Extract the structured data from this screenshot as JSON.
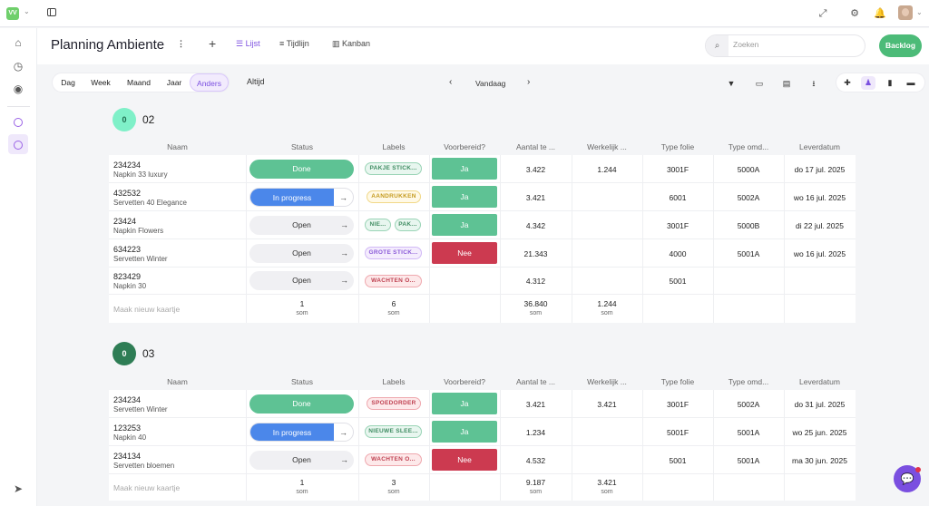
{
  "workspace": {
    "initials": "VV"
  },
  "header": {
    "title": "Planning Ambiente",
    "add": "+",
    "views": [
      "Lijst",
      "Tijdlijn",
      "Kanban"
    ],
    "search_placeholder": "Zoeken",
    "backlog": "Backlog"
  },
  "toolbar": {
    "ranges": [
      "Dag",
      "Week",
      "Maand",
      "Jaar",
      "Anders"
    ],
    "active_range": "Anders",
    "period": "Altijd",
    "today": "Vandaag"
  },
  "columns": [
    "Naam",
    "Status",
    "Labels",
    "Voorbereid?",
    "Aantal te ...",
    "Werkelijk ...",
    "Type folie",
    "Type omd...",
    "Leverdatum"
  ],
  "groups": [
    {
      "name": "02",
      "count": "0",
      "badge_color": "#7ff0c8",
      "badge_text": "#1f6b4e",
      "rows": [
        {
          "id": "234234",
          "name": "Napkin 33 luxury",
          "status": "Done",
          "labels": [
            "PAKJE STICK..."
          ],
          "label_colors": [
            "green"
          ],
          "ready": "Ja",
          "aantal": "3.422",
          "werkelijk": "1.244",
          "folie": "3001F",
          "omdoos": "5000A",
          "lever": "do 17 jul. 2025"
        },
        {
          "id": "432532",
          "name": "Servetten 40 Elegance",
          "status": "In progress",
          "labels": [
            "AANDRUKKEN"
          ],
          "label_colors": [
            "yellow"
          ],
          "ready": "Ja",
          "aantal": "3.421",
          "werkelijk": "",
          "folie": "6001",
          "omdoos": "5002A",
          "lever": "wo 16 jul. 2025"
        },
        {
          "id": "23424",
          "name": "Napkin Flowers",
          "status": "Open",
          "labels": [
            "NIE...",
            "PAK..."
          ],
          "label_colors": [
            "green",
            "green"
          ],
          "ready": "Ja",
          "aantal": "4.342",
          "werkelijk": "",
          "folie": "3001F",
          "omdoos": "5000B",
          "lever": "di 22 jul. 2025"
        },
        {
          "id": "634223",
          "name": "Servetten Winter",
          "status": "Open",
          "labels": [
            "GROTE STICK..."
          ],
          "label_colors": [
            "purple"
          ],
          "ready": "Nee",
          "aantal": "21.343",
          "werkelijk": "",
          "folie": "4000",
          "omdoos": "5001A",
          "lever": "wo 16 jul. 2025"
        },
        {
          "id": "823429",
          "name": "Napkin 30",
          "status": "Open",
          "labels": [
            "WACHTEN O..."
          ],
          "label_colors": [
            "red"
          ],
          "ready": "",
          "aantal": "4.312",
          "werkelijk": "",
          "folie": "5001",
          "omdoos": "",
          "lever": ""
        }
      ],
      "footer": {
        "new_card": "Maak nieuw kaartje",
        "status_sum": "1",
        "labels_sum": "6",
        "aantal_sum": "36.840",
        "werkelijk_sum": "1.244",
        "som": "som"
      }
    },
    {
      "name": "03",
      "count": "0",
      "badge_color": "#2e7d55",
      "badge_text": "#ffffff",
      "rows": [
        {
          "id": "234234",
          "name": "Servetten Winter",
          "status": "Done",
          "labels": [
            "SPOEDORDER"
          ],
          "label_colors": [
            "red"
          ],
          "ready": "Ja",
          "aantal": "3.421",
          "werkelijk": "3.421",
          "folie": "3001F",
          "omdoos": "5002A",
          "lever": "do 31 jul. 2025"
        },
        {
          "id": "123253",
          "name": "Napkin 40",
          "status": "In progress",
          "labels": [
            "NIEUWE SLEE..."
          ],
          "label_colors": [
            "green"
          ],
          "ready": "Ja",
          "aantal": "1.234",
          "werkelijk": "",
          "folie": "5001F",
          "omdoos": "5001A",
          "lever": "wo 25 jun. 2025"
        },
        {
          "id": "234134",
          "name": "Servetten bloemen",
          "status": "Open",
          "labels": [
            "WACHTEN O..."
          ],
          "label_colors": [
            "red"
          ],
          "ready": "Nee",
          "aantal": "4.532",
          "werkelijk": "",
          "folie": "5001",
          "omdoos": "5001A",
          "lever": "ma 30 jun. 2025"
        }
      ],
      "footer": {
        "new_card": "Maak nieuw kaartje",
        "status_sum": "1",
        "labels_sum": "3",
        "aantal_sum": "9.187",
        "werkelijk_sum": "3.421",
        "som": "som"
      }
    }
  ],
  "colors": {
    "accent": "#7a4fe0",
    "done": "#5ec294",
    "progress": "#4b87ea",
    "ja": "#5ec294",
    "nee": "#cc3a50"
  },
  "icons": [
    "home-icon",
    "clock-icon",
    "compass-icon",
    "circle-icon",
    "send-icon",
    "fullscreen-icon",
    "gear-icon",
    "bell-icon",
    "filter-icon",
    "columns-icon",
    "group-icon",
    "download-icon",
    "puzzle-icon",
    "users-icon",
    "clipboard-icon",
    "archive-icon",
    "chat-icon"
  ]
}
